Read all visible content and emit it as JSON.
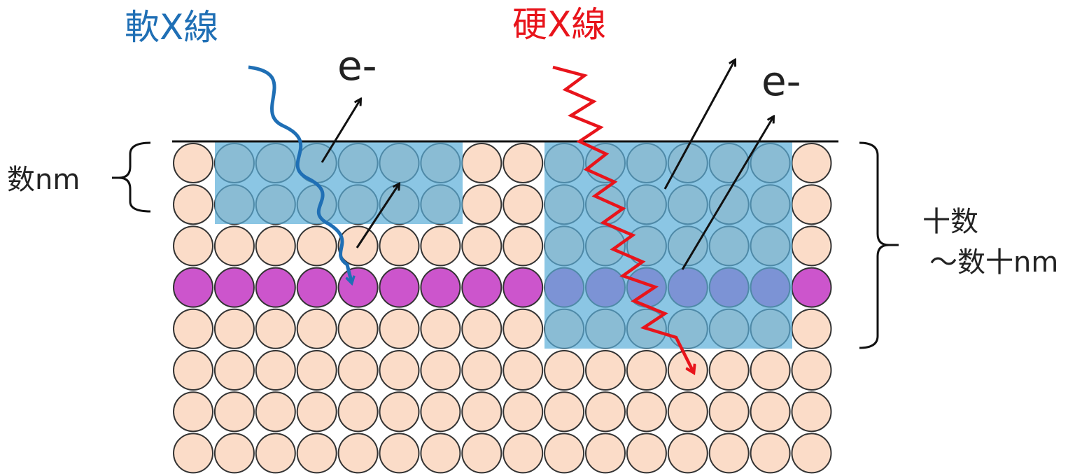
{
  "labels": {
    "soft_xray": "軟X線",
    "hard_xray": "硬X線",
    "electron_left": "e-",
    "electron_right": "e-",
    "depth_shallow": "数nm",
    "depth_deep_line1": "十数",
    "depth_deep_line2": "〜数十nm"
  },
  "colors": {
    "soft_xray": "#1f6fb5",
    "hard_xray": "#e8141b",
    "atom_fill": "#fbdcc8",
    "atom_stroke": "#333333",
    "dopant_layer": "#cc55cc",
    "detection_region": "#5aaed8",
    "text": "#222222"
  },
  "lattice": {
    "columns": 16,
    "rows": 8,
    "dopant_row_index": 3
  },
  "regions": {
    "soft_xray_probe": {
      "first_column": 1,
      "last_column": 6,
      "rows": 2
    },
    "hard_xray_probe": {
      "first_column": 9,
      "last_column": 14,
      "rows": 5
    }
  }
}
